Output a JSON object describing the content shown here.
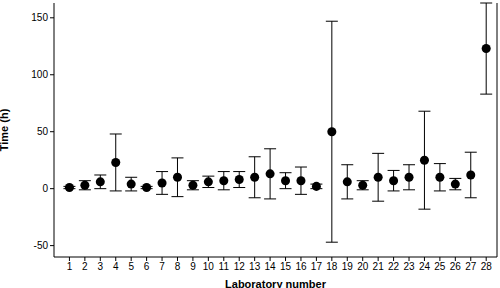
{
  "chart_data": {
    "type": "scatter",
    "x_label": "Laboratory number",
    "y_label": "Time (h)",
    "x": [
      1,
      2,
      3,
      4,
      5,
      6,
      7,
      8,
      9,
      10,
      11,
      12,
      13,
      14,
      15,
      16,
      17,
      18,
      19,
      20,
      21,
      22,
      23,
      24,
      25,
      26,
      27,
      28
    ],
    "values": [
      1,
      3,
      6,
      23,
      4,
      1,
      5,
      10,
      3,
      6,
      7,
      8,
      10,
      13,
      7,
      7,
      2,
      50,
      6,
      3,
      10,
      7,
      10,
      25,
      10,
      4,
      12,
      123
    ],
    "error": [
      1,
      4,
      6,
      25,
      6,
      1,
      10,
      17,
      4,
      5,
      8,
      7,
      18,
      22,
      7,
      12,
      2,
      97,
      15,
      4,
      21,
      9,
      11,
      43,
      12,
      5,
      20,
      40
    ],
    "xlim": [
      0,
      28.7
    ],
    "ylim": [
      -60,
      163
    ],
    "xticks": [
      1,
      2,
      3,
      4,
      5,
      6,
      7,
      8,
      9,
      10,
      11,
      12,
      13,
      14,
      15,
      16,
      17,
      18,
      19,
      20,
      21,
      22,
      23,
      24,
      25,
      26,
      27,
      28
    ],
    "yticks": [
      -50,
      0,
      50,
      100,
      150
    ],
    "color": "#000000",
    "marker": "circle",
    "grid": false
  }
}
